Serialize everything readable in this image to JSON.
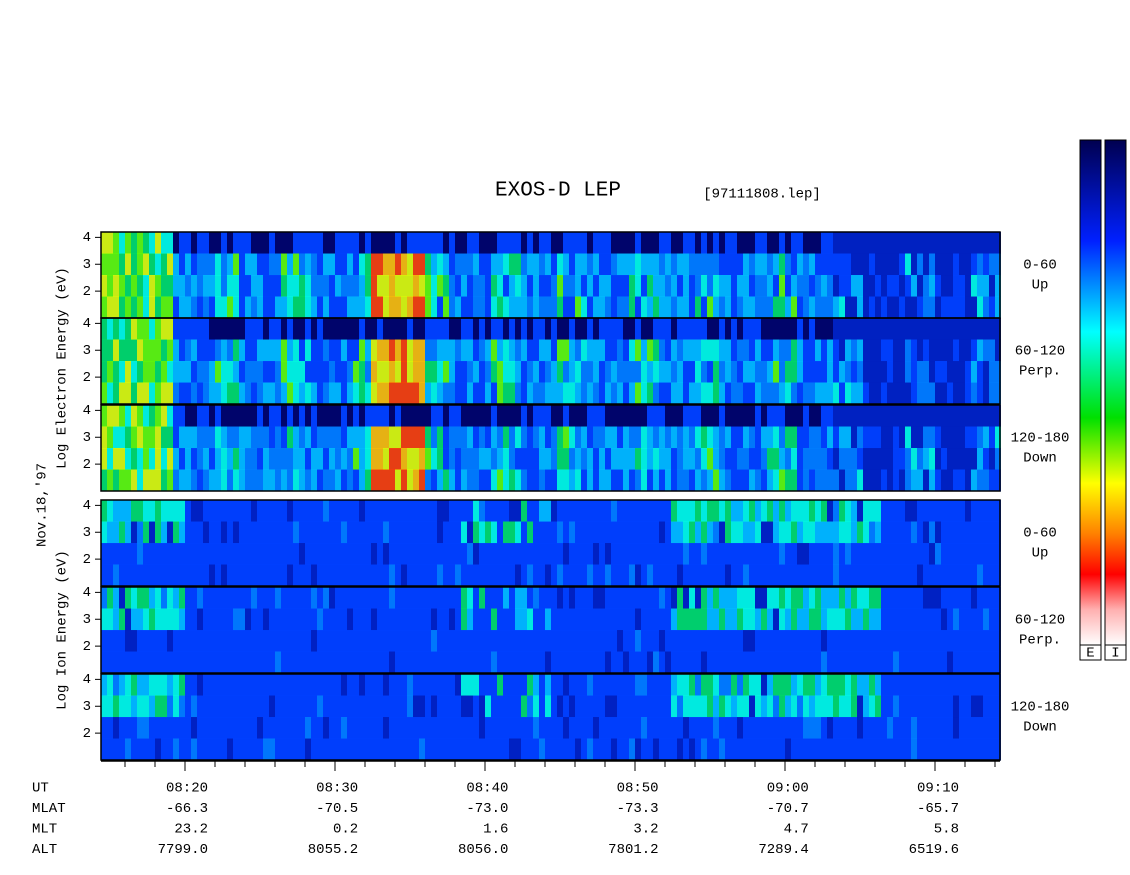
{
  "title": "EXOS-D LEP",
  "file": "[97111808.lep]",
  "date": "Nov.18,'97",
  "electron_label": "Log Electron Energy (eV)",
  "ion_label": "Log Ion Energy (eV)",
  "panels": [
    {
      "pitch": "0-60",
      "direction": "Up",
      "yticks": [
        2,
        3,
        4
      ]
    },
    {
      "pitch": "60-120",
      "direction": "Perp.",
      "yticks": [
        2,
        3,
        4
      ]
    },
    {
      "pitch": "120-180",
      "direction": "Down",
      "yticks": [
        2,
        3,
        4
      ]
    },
    {
      "pitch": "0-60",
      "direction": "Up",
      "yticks": [
        2,
        3,
        4
      ]
    },
    {
      "pitch": "60-120",
      "direction": "Perp.",
      "yticks": [
        2,
        3,
        4
      ]
    },
    {
      "pitch": "120-180",
      "direction": "Down",
      "yticks": [
        2,
        3,
        4
      ]
    }
  ],
  "colorbars": [
    "E",
    "I"
  ],
  "orbit": {
    "labels": [
      "UT",
      "MLAT",
      "MLT",
      "ALT"
    ],
    "columns": [
      [
        "08:20",
        "-66.3",
        "23.2",
        "7799.0"
      ],
      [
        "08:30",
        "-70.5",
        "0.2",
        "8055.2"
      ],
      [
        "08:40",
        "-73.0",
        "1.6",
        "8056.0"
      ],
      [
        "08:50",
        "-73.3",
        "3.2",
        "7801.2"
      ],
      [
        "09:00",
        "-70.7",
        "4.7",
        "7289.4"
      ],
      [
        "09:10",
        "-65.7",
        "5.8",
        "6519.6"
      ]
    ]
  }
}
